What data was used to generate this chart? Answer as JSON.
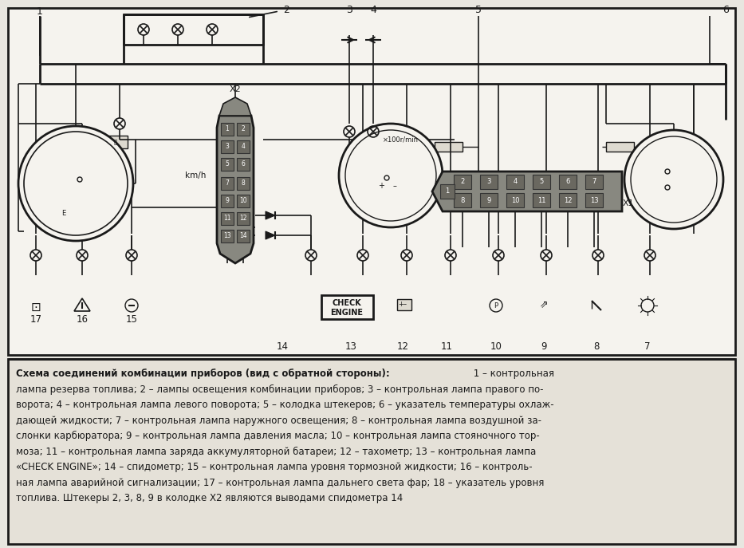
{
  "fig_width": 9.33,
  "fig_height": 6.87,
  "dpi": 100,
  "bg_color": "#e8e6e0",
  "diagram_bg": "#f0ede6",
  "dark": "#1a1a1a",
  "caption_line1_bold": "Схема соединений комбинации приборов (вид с обратной стороны):",
  "caption_line1_normal": " 1 – контрольная",
  "caption_lines": [
    "лампа резерва топлива; 2 – лампы освещения комбинации приборов; 3 – контрольная лампа правого по-",
    "ворота; 4 – контрольная лампа левого поворота; 5 – колодка штекеров; 6 – указатель температуры охлаж-",
    "дающей жидкости; 7 – контрольная лампа наружного освещения; 8 – контрольная лампа воздушной за-",
    "слонки карбюратора; 9 – контрольная лампа давления масла; 10 – контрольная лампа стояночного тор-",
    "моза; 11 – контрольная лампа заряда аккумуляторной батареи; 12 – тахометр; 13 – контрольная лампа",
    "«CHECK ENGINE»; 14 – спидометр; 15 – контрольная лампа уровня тормозной жидкости; 16 – контроль-",
    "ная лампа аварийной сигнализации; 17 – контрольная лампа дальнего света фар; 18 – указатель уровня",
    "топлива. Штекеры 2, 3, 8, 9 в колодке Х2 являются выводами спидометра 14"
  ]
}
